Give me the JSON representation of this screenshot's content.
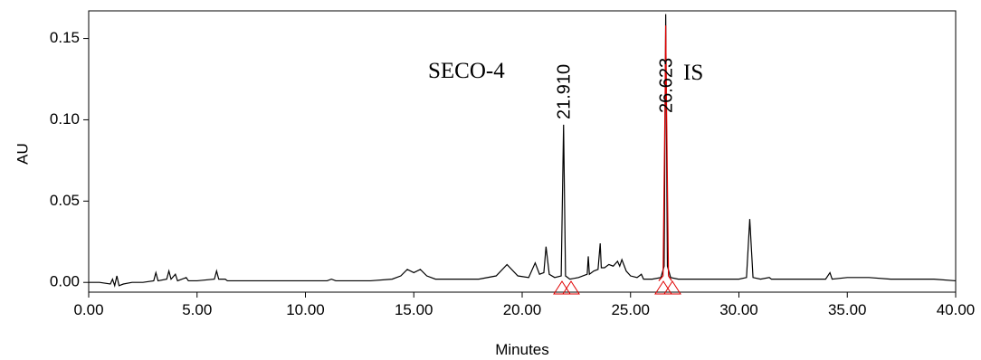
{
  "chart_data": {
    "type": "line",
    "x_label": "Minutes",
    "y_label": "AU",
    "annotations": [
      "SECO-4",
      "IS"
    ],
    "peak_labels": [
      {
        "value": 21.91,
        "label": "21.910"
      },
      {
        "value": 26.623,
        "label": "26.623"
      }
    ],
    "xlim": [
      0,
      40
    ],
    "ylim": [
      -0.006,
      0.167
    ],
    "xticks": [
      {
        "value": 0,
        "label": "0.00"
      },
      {
        "value": 5,
        "label": "5.00"
      },
      {
        "value": 10,
        "label": "10.00"
      },
      {
        "value": 15,
        "label": "15.00"
      },
      {
        "value": 20,
        "label": "20.00"
      },
      {
        "value": 25,
        "label": "25.00"
      },
      {
        "value": 30,
        "label": "30.00"
      },
      {
        "value": 35,
        "label": "35.00"
      },
      {
        "value": 40,
        "label": "40.00"
      }
    ],
    "yticks": [
      {
        "value": 0,
        "label": "0.00"
      },
      {
        "value": 0.05,
        "label": "0.05"
      },
      {
        "value": 0.1,
        "label": "0.10"
      },
      {
        "value": 0.15,
        "label": "0.15"
      }
    ],
    "series": [
      {
        "color": "#000000",
        "x": [
          0,
          0.5,
          1.0,
          1.1,
          1.2,
          1.3,
          1.4,
          1.6,
          2.0,
          2.5,
          3.0,
          3.1,
          3.2,
          3.6,
          3.7,
          3.8,
          4.0,
          4.1,
          4.5,
          4.6,
          5.0,
          5.8,
          5.9,
          6.0,
          6.3,
          6.4,
          7,
          8,
          9,
          10,
          11,
          11.2,
          11.4,
          12,
          13,
          14,
          14.4,
          14.7,
          15.0,
          15.3,
          15.6,
          16,
          17,
          18,
          18.8,
          19.3,
          19.8,
          20.3,
          20.6,
          20.8,
          21.0,
          21.1,
          21.25,
          21.5,
          21.8,
          21.91,
          22.0,
          22.2,
          22.6,
          23.0,
          23.05,
          23.1,
          23.3,
          23.5,
          23.6,
          23.65,
          23.8,
          24.0,
          24.2,
          24.4,
          24.5,
          24.6,
          24.8,
          25.0,
          25.3,
          25.5,
          25.6,
          26.0,
          26.4,
          26.55,
          26.623,
          26.7,
          26.85,
          27.2,
          28,
          28.9,
          29,
          30,
          30.35,
          30.5,
          30.65,
          31,
          31.4,
          31.5,
          32,
          33,
          34,
          34.2,
          34.3,
          35,
          36,
          37,
          38,
          39,
          40
        ],
        "values": [
          0.0,
          0.0,
          -0.001,
          0.002,
          -0.002,
          0.004,
          -0.002,
          -0.001,
          0.0,
          0.0,
          0.001,
          0.006,
          0.001,
          0.002,
          0.007,
          0.002,
          0.005,
          0.001,
          0.003,
          0.001,
          0.001,
          0.002,
          0.007,
          0.002,
          0.002,
          0.001,
          0.001,
          0.001,
          0.001,
          0.001,
          0.001,
          0.002,
          0.001,
          0.001,
          0.001,
          0.002,
          0.004,
          0.008,
          0.006,
          0.008,
          0.004,
          0.002,
          0.002,
          0.002,
          0.004,
          0.011,
          0.004,
          0.003,
          0.012,
          0.005,
          0.006,
          0.022,
          0.005,
          0.003,
          0.004,
          0.097,
          0.004,
          0.002,
          0.003,
          0.005,
          0.016,
          0.005,
          0.007,
          0.008,
          0.024,
          0.009,
          0.009,
          0.011,
          0.01,
          0.013,
          0.01,
          0.014,
          0.007,
          0.004,
          0.003,
          0.005,
          0.002,
          0.002,
          0.003,
          0.01,
          0.165,
          0.01,
          0.003,
          0.002,
          0.002,
          0.002,
          0.002,
          0.002,
          0.003,
          0.039,
          0.003,
          0.002,
          0.003,
          0.002,
          0.002,
          0.002,
          0.002,
          0.006,
          0.002,
          0.003,
          0.003,
          0.002,
          0.002,
          0.002,
          0.001
        ]
      },
      {
        "color": "#e00000",
        "x": [
          26.3,
          26.5,
          26.6,
          26.623,
          26.65,
          26.75,
          26.9
        ],
        "values": [
          0.001,
          0.004,
          0.12,
          0.158,
          0.12,
          0.004,
          0.001
        ]
      }
    ]
  }
}
